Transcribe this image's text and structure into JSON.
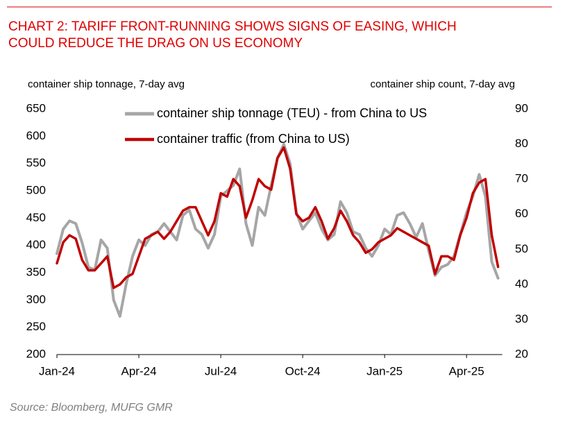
{
  "chart_data": {
    "type": "line",
    "title": [
      "CHART 2: TARIFF FRONT-RUNNING SHOWS SIGNS OF EASING, WHICH",
      "COULD REDUCE THE DRAG ON US ECONOMY"
    ],
    "y_label": "container ship tonnage, 7-day avg",
    "y2_label": "container ship count, 7-day avg",
    "source": "Source: Bloomberg, MUFG GMR",
    "categories": [
      "Jan-24",
      null,
      null,
      null,
      null,
      null,
      null,
      null,
      null,
      null,
      null,
      null,
      null,
      "Apr-24",
      null,
      null,
      null,
      null,
      null,
      null,
      null,
      null,
      null,
      null,
      null,
      null,
      "Jul-24",
      null,
      null,
      null,
      null,
      null,
      null,
      null,
      null,
      null,
      null,
      null,
      null,
      "Oct-24",
      null,
      null,
      null,
      null,
      null,
      null,
      null,
      null,
      null,
      null,
      null,
      null,
      "Jan-25",
      null,
      null,
      null,
      null,
      null,
      null,
      null,
      null,
      null,
      null,
      null,
      null,
      "Apr-25",
      null,
      null,
      null,
      null,
      null
    ],
    "ylim": [
      200,
      650
    ],
    "yticks": [
      200,
      250,
      300,
      350,
      400,
      450,
      500,
      550,
      600,
      650
    ],
    "y2lim": [
      20,
      90
    ],
    "y2ticks": [
      20,
      30,
      40,
      50,
      60,
      70,
      80,
      90
    ],
    "series": [
      {
        "name": "container ship tonnage (TEU) - from China to US",
        "color": "#a6a6a6",
        "axis": "y",
        "values": [
          385,
          430,
          445,
          440,
          405,
          360,
          355,
          410,
          395,
          300,
          270,
          330,
          380,
          410,
          400,
          420,
          425,
          440,
          425,
          410,
          455,
          465,
          430,
          420,
          395,
          420,
          490,
          500,
          510,
          540,
          440,
          400,
          470,
          455,
          510,
          560,
          585,
          550,
          460,
          430,
          445,
          460,
          430,
          410,
          420,
          480,
          460,
          425,
          420,
          395,
          380,
          400,
          430,
          420,
          455,
          460,
          440,
          415,
          440,
          390,
          345,
          360,
          365,
          380,
          420,
          460,
          490,
          530,
          490,
          370,
          340
        ]
      },
      {
        "name": "container traffic (from China to US)",
        "color": "#c00000",
        "axis": "y2",
        "values": [
          46,
          52,
          54,
          53,
          47,
          44,
          44,
          46,
          48,
          39,
          40,
          42,
          43,
          48,
          53,
          54,
          55,
          53,
          55,
          58,
          61,
          62,
          62,
          58,
          54,
          58,
          66,
          65,
          70,
          68,
          59,
          64,
          70,
          68,
          67,
          76,
          79,
          73,
          60,
          58,
          59,
          62,
          58,
          53,
          56,
          61,
          58,
          54,
          52,
          49,
          50,
          52,
          53,
          54,
          56,
          55,
          54,
          53,
          52,
          51,
          43,
          48,
          48,
          47,
          54,
          59,
          66,
          69,
          70,
          54,
          45
        ]
      }
    ]
  }
}
